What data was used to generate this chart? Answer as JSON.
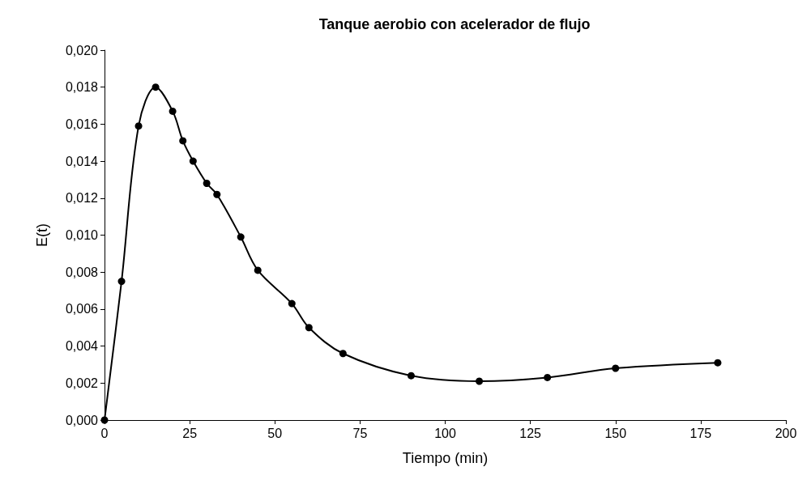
{
  "chart_data": {
    "type": "line",
    "title": "Tanque aerobio con acelerador de flujo",
    "xlabel": "Tiempo (min)",
    "ylabel": "E(t)",
    "x": [
      0,
      5,
      10,
      15,
      20,
      23,
      26,
      30,
      33,
      40,
      45,
      55,
      60,
      70,
      90,
      110,
      130,
      150,
      180
    ],
    "series": [
      {
        "color": "#000000",
        "values": [
          0,
          0.0075,
          0.0159,
          0.018,
          0.0167,
          0.0151,
          0.014,
          0.0128,
          0.0122,
          0.0099,
          0.0081,
          0.0063,
          0.005,
          0.0036,
          0.0024,
          0.0021,
          0.0023,
          0.0028,
          0.0031
        ]
      }
    ],
    "xlim": [
      0,
      200
    ],
    "xticks": [
      0,
      25,
      50,
      75,
      100,
      125,
      150,
      175,
      200
    ],
    "ylim": [
      0,
      0.02
    ],
    "yticks": [
      {
        "value": 0,
        "label": "0,000"
      },
      {
        "value": 0.002,
        "label": "0,002"
      },
      {
        "value": 0.004,
        "label": "0,004"
      },
      {
        "value": 0.006,
        "label": "0,006"
      },
      {
        "value": 0.008,
        "label": "0,008"
      },
      {
        "value": 0.01,
        "label": "0,010"
      },
      {
        "value": 0.012,
        "label": "0,012"
      },
      {
        "value": 0.014,
        "label": "0,014"
      },
      {
        "value": 0.016,
        "label": "0,016"
      },
      {
        "value": 0.018,
        "label": "0,018"
      },
      {
        "value": 0.02,
        "label": "0,020"
      }
    ],
    "grid": false,
    "marker": "circle",
    "line_style": "solid"
  }
}
